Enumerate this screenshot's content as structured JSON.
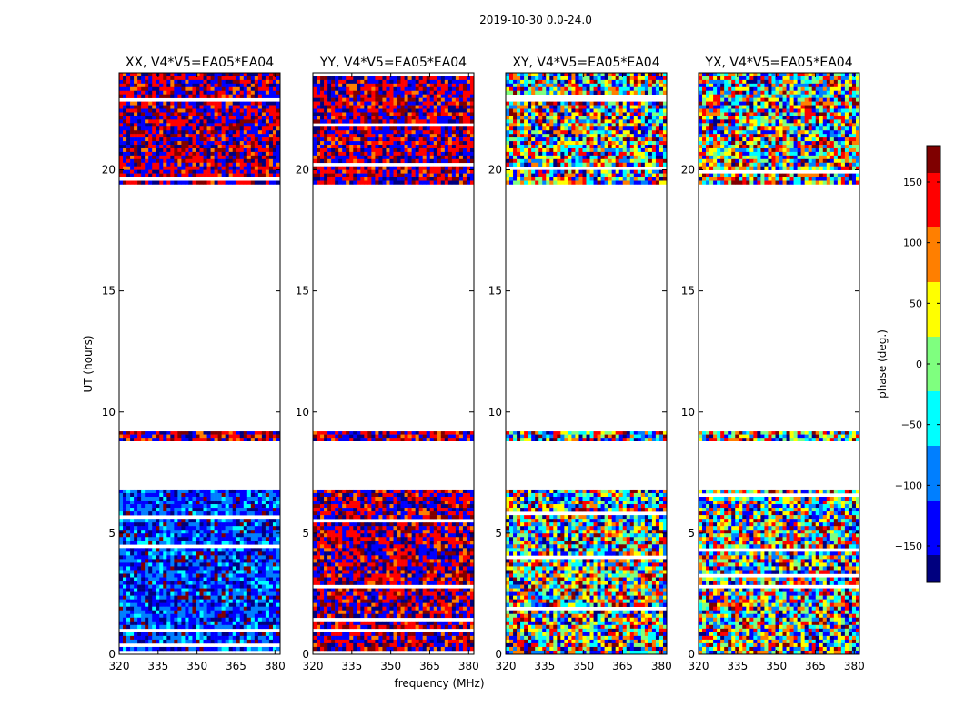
{
  "figure": {
    "suptitle": "2019-10-30 0.0-24.0",
    "xlabel": "frequency (MHz)",
    "ylabel": "UT (hours)",
    "colorbar_label": "phase (deg.)"
  },
  "colormap": [
    "#00007f",
    "#0000ff",
    "#007fff",
    "#00ffff",
    "#7fff7f",
    "#ffff00",
    "#ff7f00",
    "#ff0000",
    "#7f0000"
  ],
  "chart_data": {
    "type": "heatmap",
    "x_range": [
      320,
      382
    ],
    "y_range": [
      0,
      24
    ],
    "x_ticks": [
      "320",
      "335",
      "350",
      "365",
      "380"
    ],
    "x_tick_values": [
      320,
      335,
      350,
      365,
      380
    ],
    "y_ticks": [
      "0",
      "5",
      "10",
      "15",
      "20"
    ],
    "y_tick_values": [
      0,
      5,
      10,
      15,
      20
    ],
    "value_range": [
      -180,
      180
    ],
    "colorbar_ticks": [
      "−150",
      "−100",
      "−50",
      "0",
      "50",
      "100",
      "150"
    ],
    "colorbar_tick_values": [
      -150,
      -100,
      -50,
      0,
      50,
      100,
      150
    ],
    "data_segments_hours": [
      [
        0.0,
        6.8
      ],
      [
        8.8,
        9.2
      ],
      [
        19.4,
        24.0
      ]
    ],
    "panels": [
      {
        "title": "XX, V4*V5=EA05*EA04",
        "mean_phase_by_segment": [
          -120,
          160,
          170
        ],
        "noise": 70
      },
      {
        "title": "YY, V4*V5=EA05*EA04",
        "mean_phase_by_segment": [
          170,
          170,
          170
        ],
        "noise": 70
      },
      {
        "title": "XY, V4*V5=EA05*EA04",
        "mean_phase_by_segment": [
          0,
          0,
          0
        ],
        "noise": 180
      },
      {
        "title": "YX, V4*V5=EA05*EA04",
        "mean_phase_by_segment": [
          -30,
          -60,
          -30
        ],
        "noise": 180
      }
    ]
  }
}
